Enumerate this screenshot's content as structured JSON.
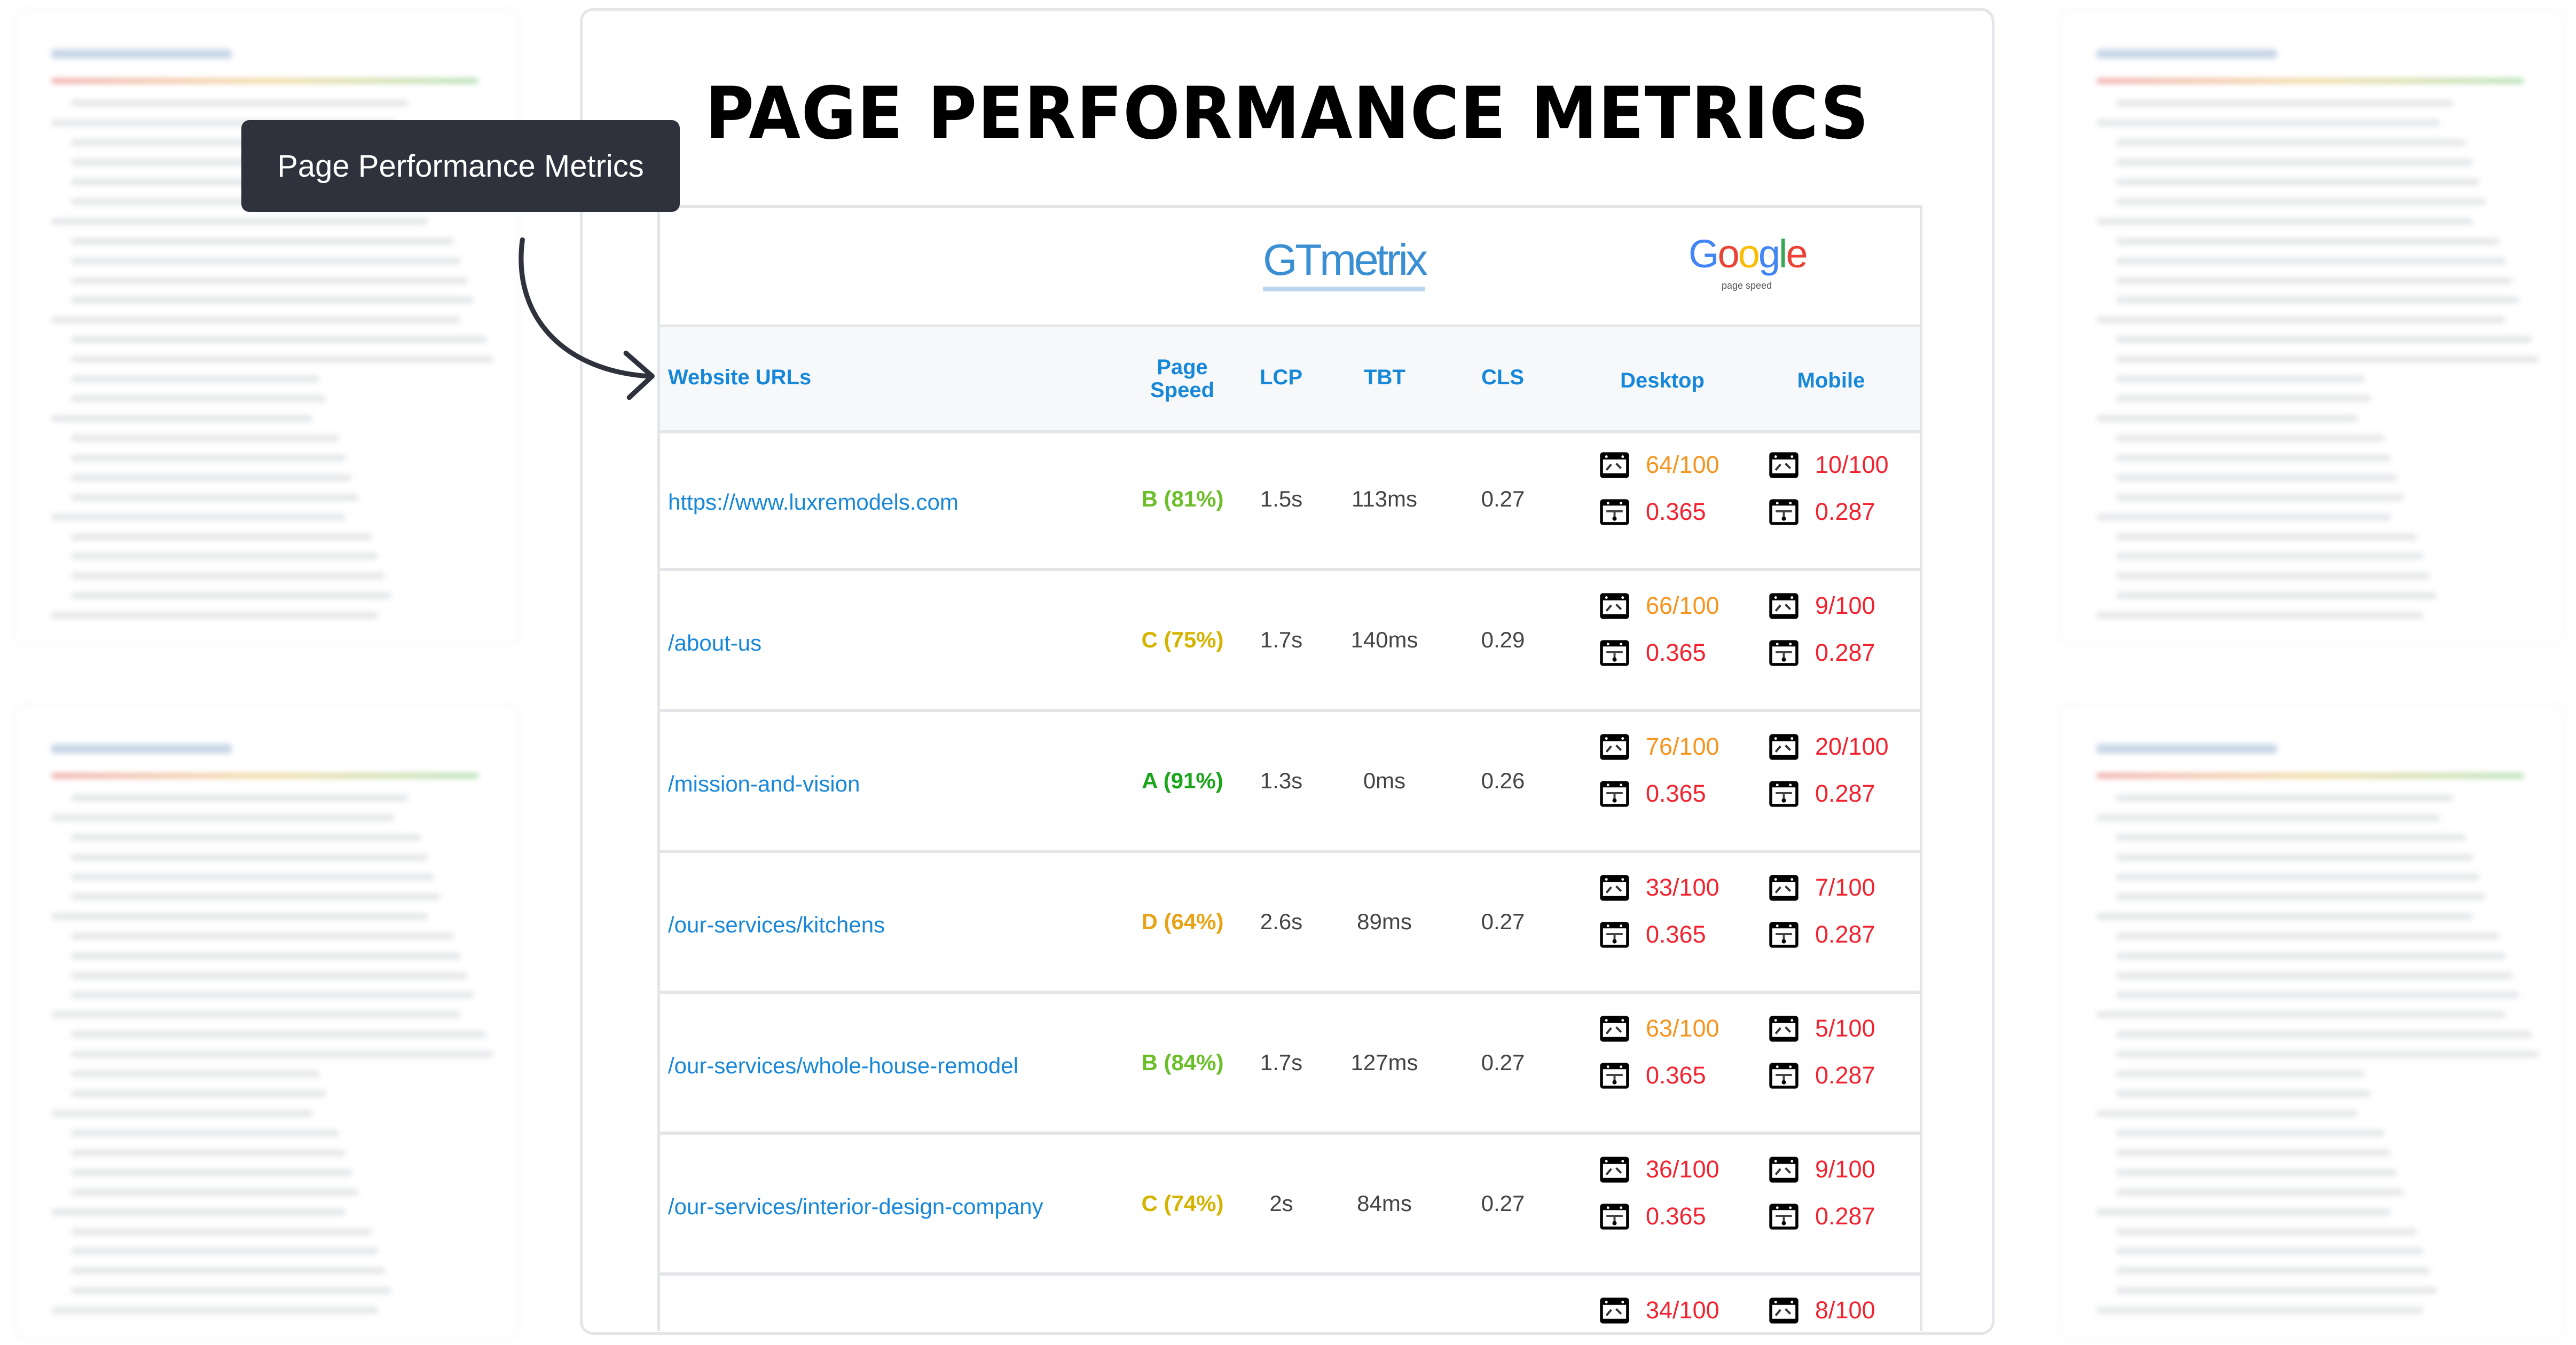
{
  "tooltip": {
    "label": "Page Performance Metrics"
  },
  "card": {
    "title": "PAGE PERFORMANCE METRICS"
  },
  "logos": {
    "gtmetrix": "GTmetrix",
    "google": "Google",
    "google_sub": "page speed"
  },
  "headers": {
    "url": "Website URLs",
    "page_speed_1": "Page",
    "page_speed_2": "Speed",
    "lcp": "LCP",
    "tbt": "TBT",
    "cls": "CLS",
    "desktop": "Desktop",
    "mobile": "Mobile"
  },
  "colors": {
    "link": "#1687d9",
    "orange": "#f7941d",
    "red": "#f2232f",
    "green_a": "#1aa51a",
    "green_b": "#6cbf2a",
    "yellow_c": "#d4b400",
    "orange_d": "#e8a317",
    "tooltip_bg": "#2f323d"
  },
  "rows": [
    {
      "url": "https://www.luxremodels.com",
      "grade": "B (81%)",
      "grade_color": "#6cbf2a",
      "lcp": "1.5s",
      "tbt": "113ms",
      "cls": "0.27",
      "desktop_score": "64/100",
      "desktop_color": "#f7941d",
      "desktop_cls": "0.365",
      "mobile_score": "10/100",
      "mobile_color": "#f2232f",
      "mobile_cls": "0.287"
    },
    {
      "url": "/about-us",
      "grade": "C (75%)",
      "grade_color": "#d4b400",
      "lcp": "1.7s",
      "tbt": "140ms",
      "cls": "0.29",
      "desktop_score": "66/100",
      "desktop_color": "#f7941d",
      "desktop_cls": "0.365",
      "mobile_score": "9/100",
      "mobile_color": "#f2232f",
      "mobile_cls": "0.287"
    },
    {
      "url": "/mission-and-vision",
      "grade": "A (91%)",
      "grade_color": "#1aa51a",
      "lcp": "1.3s",
      "tbt": "0ms",
      "cls": "0.26",
      "desktop_score": "76/100",
      "desktop_color": "#f7941d",
      "desktop_cls": "0.365",
      "mobile_score": "20/100",
      "mobile_color": "#f2232f",
      "mobile_cls": "0.287"
    },
    {
      "url": "/our-services/kitchens",
      "grade": "D (64%)",
      "grade_color": "#e8a317",
      "lcp": "2.6s",
      "tbt": "89ms",
      "cls": "0.27",
      "desktop_score": "33/100",
      "desktop_color": "#f2232f",
      "desktop_cls": "0.365",
      "mobile_score": "7/100",
      "mobile_color": "#f2232f",
      "mobile_cls": "0.287"
    },
    {
      "url": "/our-services/whole-house-remodel",
      "grade": "B (84%)",
      "grade_color": "#6cbf2a",
      "lcp": "1.7s",
      "tbt": "127ms",
      "cls": "0.27",
      "desktop_score": "63/100",
      "desktop_color": "#f7941d",
      "desktop_cls": "0.365",
      "mobile_score": "5/100",
      "mobile_color": "#f2232f",
      "mobile_cls": "0.287"
    },
    {
      "url": "/our-services/interior-design-company",
      "grade": "C (74%)",
      "grade_color": "#d4b400",
      "lcp": "2s",
      "tbt": "84ms",
      "cls": "0.27",
      "desktop_score": "36/100",
      "desktop_color": "#f2232f",
      "desktop_cls": "0.365",
      "mobile_score": "9/100",
      "mobile_color": "#f2232f",
      "mobile_cls": "0.287"
    },
    {
      "desktop_score": "34/100",
      "desktop_color": "#f2232f",
      "mobile_score": "8/100",
      "mobile_color": "#f2232f"
    }
  ]
}
